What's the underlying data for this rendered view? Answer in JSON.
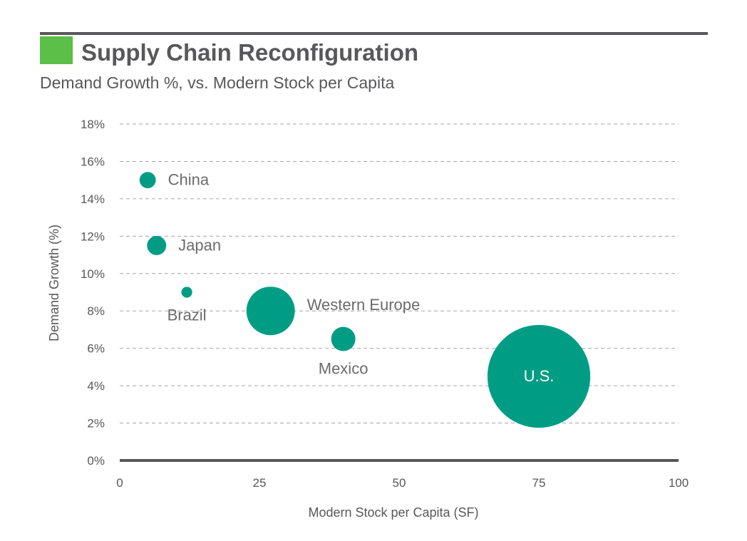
{
  "header": {
    "title": "Supply Chain Reconfiguration",
    "subtitle": "Demand Growth %, vs. Modern Stock per Capita"
  },
  "colors": {
    "bubble": "#009d84",
    "accent_square": "#5cbf48",
    "text": "#58585a",
    "grid": "#a6a6a6",
    "axis": "#58585a"
  },
  "chart_data": {
    "type": "bubble",
    "title": "Supply Chain Reconfiguration",
    "subtitle": "Demand Growth %, vs. Modern Stock per Capita",
    "xlabel": "Modern Stock per Capita (SF)",
    "ylabel": "Demand Growth (%)",
    "xlim": [
      0,
      100
    ],
    "ylim": [
      0,
      18
    ],
    "x_ticks": [
      0,
      25,
      50,
      75,
      100
    ],
    "x_tick_labels": [
      "0",
      "25",
      "50",
      "75",
      "100"
    ],
    "y_ticks": [
      0,
      2,
      4,
      6,
      8,
      10,
      12,
      14,
      16,
      18
    ],
    "y_tick_labels": [
      "0%",
      "2%",
      "4%",
      "6%",
      "8%",
      "10%",
      "12%",
      "14%",
      "16%",
      "18%"
    ],
    "grid": true,
    "points": [
      {
        "name": "China",
        "x": 5,
        "y": 15,
        "size": 1.8,
        "label_pos": "right"
      },
      {
        "name": "Japan",
        "x": 6.6,
        "y": 11.5,
        "size": 2.5,
        "label_pos": "right"
      },
      {
        "name": "Brazil",
        "x": 12,
        "y": 9,
        "size": 0.8,
        "label_pos": "below"
      },
      {
        "name": "Western Europe",
        "x": 27,
        "y": 8,
        "size": 16,
        "label_pos": "right"
      },
      {
        "name": "Mexico",
        "x": 40,
        "y": 6.5,
        "size": 4,
        "label_pos": "below"
      },
      {
        "name": "U.S.",
        "x": 75,
        "y": 4.5,
        "size": 72,
        "label_pos": "inside"
      }
    ]
  }
}
